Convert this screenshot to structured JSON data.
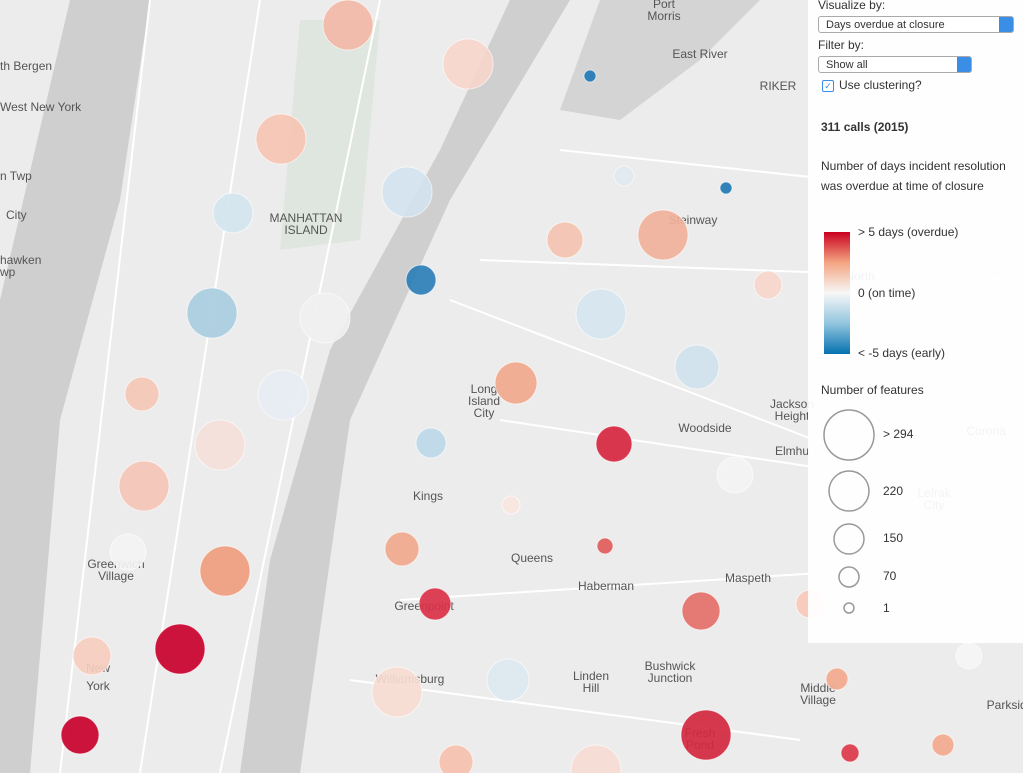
{
  "panel": {
    "visualize_label": "Visualize by:",
    "visualize_value": "Days overdue at closure",
    "filter_label": "Filter by:",
    "filter_value": "Show all",
    "clustering_label": "Use clustering?",
    "layer_title": "311 calls (2015)",
    "description": "Number of days incident resolution was overdue at time of closure",
    "color_legend": [
      "> 5 days (overdue)",
      "0 (on time)",
      "< -5 days (early)"
    ],
    "size_legend_title": "Number of features",
    "size_legend": [
      "> 294",
      "220",
      "150",
      "70",
      "1"
    ]
  },
  "map_labels": [
    [
      "Port",
      "Morris"
    ],
    [
      "East River"
    ],
    [
      "RIKER"
    ],
    [
      "th Bergen"
    ],
    [
      "West New York"
    ],
    [
      "n Twp"
    ],
    [
      "City"
    ],
    [
      "hawken",
      "wp"
    ],
    [
      "MANHATTAN",
      "ISLAND"
    ],
    [
      "Steinway"
    ],
    [
      "Long",
      "Island",
      "City"
    ],
    [
      "Woodside"
    ],
    [
      "Jackson",
      "Height"
    ],
    [
      "Elmhu"
    ],
    [
      "Kings"
    ],
    [
      "Queens"
    ],
    [
      "Greenwich",
      "Village"
    ],
    [
      "Greenpoint"
    ],
    [
      "Haberman"
    ],
    [
      "Maspeth"
    ],
    [
      "New",
      "York"
    ],
    [
      "Williamsburg"
    ],
    [
      "Linden",
      "Hill"
    ],
    [
      "Bushwick",
      "Junction"
    ],
    [
      "Middle",
      "Village"
    ],
    [
      "Fresh",
      "Pond"
    ],
    [
      "Parkside"
    ],
    [
      "Corona"
    ],
    [
      "Lefrak",
      "City"
    ],
    [
      "North"
    ]
  ]
}
